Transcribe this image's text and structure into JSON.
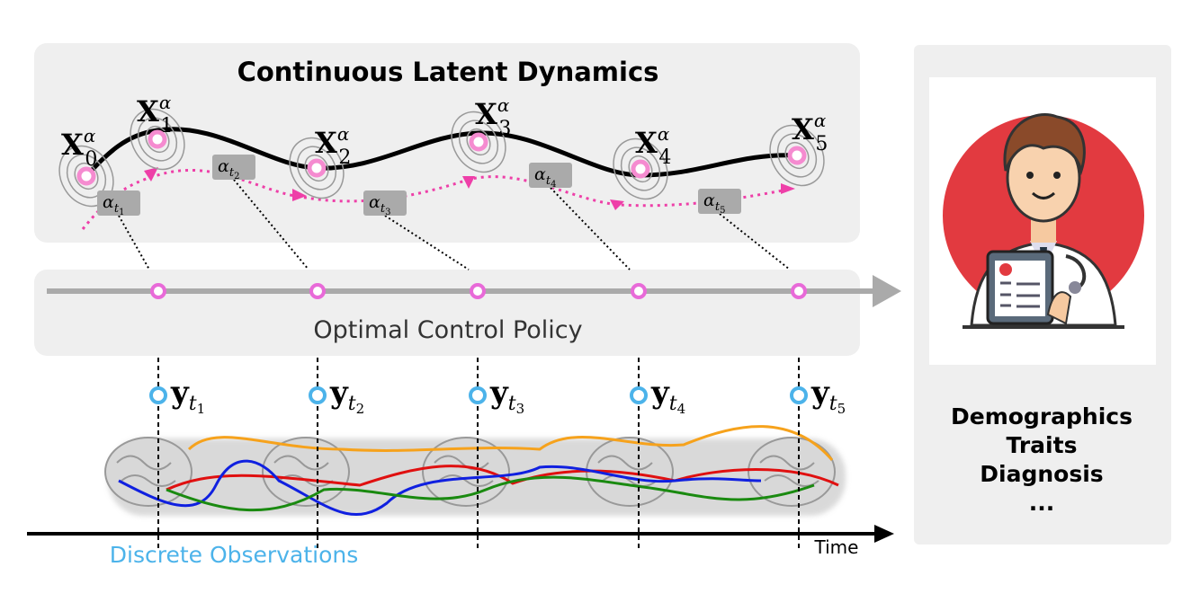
{
  "latent": {
    "title": "Continuous Latent Dynamics",
    "states": [
      {
        "base": "X",
        "sub": "0",
        "sup": "α"
      },
      {
        "base": "X",
        "sub": "1",
        "sup": "α"
      },
      {
        "base": "X",
        "sub": "2",
        "sup": "α"
      },
      {
        "base": "X",
        "sub": "3",
        "sup": "α"
      },
      {
        "base": "X",
        "sub": "4",
        "sup": "α"
      },
      {
        "base": "X",
        "sub": "5",
        "sup": "α"
      }
    ],
    "controls": [
      {
        "base": "α",
        "sub": "t",
        "index": "1"
      },
      {
        "base": "α",
        "sub": "t",
        "index": "2"
      },
      {
        "base": "α",
        "sub": "t",
        "index": "3"
      },
      {
        "base": "α",
        "sub": "t",
        "index": "4"
      },
      {
        "base": "α",
        "sub": "t",
        "index": "5"
      }
    ]
  },
  "policy": {
    "label": "Optimal Control Policy"
  },
  "observations": {
    "items": [
      {
        "base": "y",
        "sub": "t",
        "index": "1"
      },
      {
        "base": "y",
        "sub": "t",
        "index": "2"
      },
      {
        "base": "y",
        "sub": "t",
        "index": "3"
      },
      {
        "base": "y",
        "sub": "t",
        "index": "4"
      },
      {
        "base": "y",
        "sub": "t",
        "index": "5"
      }
    ],
    "label": "Discrete Observations",
    "axis_label": "Time"
  },
  "outputs": {
    "items": [
      "Demographics",
      "Traits",
      "Diagnosis",
      "..."
    ]
  }
}
